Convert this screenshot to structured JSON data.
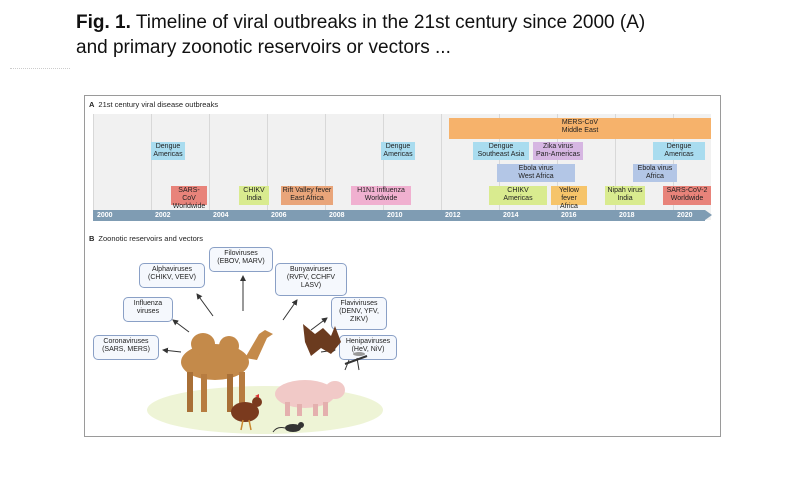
{
  "caption": {
    "fig_label": "Fig. 1.",
    "line1": "Timeline of viral outbreaks in the 21st century since 2000 (A)",
    "line2": "and primary zoonotic reservoirs or vectors ..."
  },
  "panel_a": {
    "letter": "A",
    "title": "21st century viral disease outbreaks",
    "years": [
      "2000",
      "2002",
      "2004",
      "2006",
      "2008",
      "2010",
      "2012",
      "2014",
      "2016",
      "2018",
      "2020"
    ],
    "events": [
      {
        "l1": "MERS-CoV",
        "l2": "Middle East",
        "color": "#f6b26b"
      },
      {
        "l1": "Dengue",
        "l2": "Americas",
        "color": "#a9dcef"
      },
      {
        "l1": "SARS-CoV",
        "l2": "Worldwide",
        "color": "#e8837a"
      },
      {
        "l1": "CHIKV",
        "l2": "India",
        "color": "#d9eb8f"
      },
      {
        "l1": "Rift Valley fever",
        "l2": "East Africa",
        "color": "#e9a57a"
      },
      {
        "l1": "Dengue",
        "l2": "Americas",
        "color": "#a9dcef"
      },
      {
        "l1": "H1N1 influenza",
        "l2": "Worldwide",
        "color": "#f0b0d0"
      },
      {
        "l1": "Dengue",
        "l2": "Southeast Asia",
        "color": "#a9dcef"
      },
      {
        "l1": "Zika virus",
        "l2": "Pan-Americas",
        "color": "#d6b6e2"
      },
      {
        "l1": "Ebola virus",
        "l2": "West Africa",
        "color": "#b3c6e6"
      },
      {
        "l1": "CHIKV",
        "l2": "Americas",
        "color": "#d9eb8f"
      },
      {
        "l1": "Yellow fever",
        "l2": "Africa",
        "color": "#f6c46a"
      },
      {
        "l1": "Nipah virus",
        "l2": "India",
        "color": "#d9eb8f"
      },
      {
        "l1": "Ebola virus",
        "l2": "Africa",
        "color": "#b3c6e6"
      },
      {
        "l1": "Dengue",
        "l2": "Americas",
        "color": "#a9dcef"
      },
      {
        "l1": "SARS-CoV-2",
        "l2": "Worldwide",
        "color": "#e8837a"
      }
    ]
  },
  "panel_b": {
    "letter": "B",
    "title": "Zoonotic reservoirs and vectors",
    "reservoirs": [
      {
        "l1": "Filoviruses",
        "l2": "(EBOV, MARV)",
        "l3": ""
      },
      {
        "l1": "Alphaviruses",
        "l2": "(CHIKV, VEEV)",
        "l3": ""
      },
      {
        "l1": "Bunyaviruses",
        "l2": "(RVFV, CCHFV",
        "l3": "LASV)"
      },
      {
        "l1": "Influenza",
        "l2": "viruses",
        "l3": ""
      },
      {
        "l1": "Flaviviruses",
        "l2": "(DENV, YFV,",
        "l3": "ZIKV)"
      },
      {
        "l1": "Coronaviruses",
        "l2": "(SARS, MERS)",
        "l3": ""
      },
      {
        "l1": "Henipaviruses",
        "l2": "(HeV, NiV)",
        "l3": ""
      }
    ],
    "animals": [
      "camel-icon",
      "bat-icon",
      "mosquito-icon",
      "pig-icon",
      "chicken-icon",
      "mouse-icon"
    ]
  }
}
